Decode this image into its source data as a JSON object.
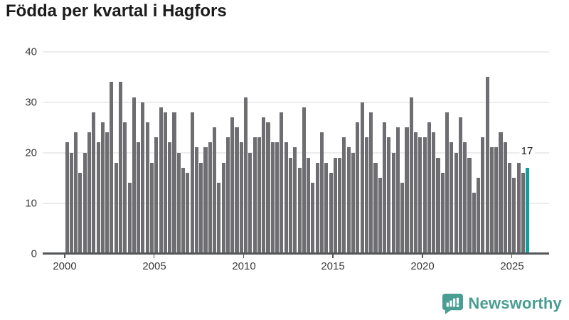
{
  "title": "Födda per kvartal i Hagfors",
  "y_axis": {
    "ticks": [
      "40",
      "30",
      "20",
      "10",
      "0"
    ],
    "values": [
      40,
      30,
      20,
      10,
      0
    ]
  },
  "x_axis": {
    "ticks": [
      "2000",
      "2005",
      "2010",
      "2015",
      "2020",
      "2025"
    ]
  },
  "annotation": {
    "label": "17"
  },
  "branding": {
    "name": "Newsworthy",
    "icon": "bar-chart-bubble-icon",
    "color": "#4a9d93"
  },
  "colors": {
    "bar": "#6d6d72",
    "highlight": "#129e9e",
    "grid": "#ececec",
    "axis": "#54565a",
    "title": "#1b1b1b",
    "labels": "#3a3a3c"
  },
  "chart_data": {
    "type": "bar",
    "title": "Födda per kvartal i Hagfors",
    "xlabel": "",
    "ylabel": "",
    "ylim": [
      0,
      40
    ],
    "grid": "horizontal",
    "x_unit": "quarter",
    "highlight": {
      "index_from_end": 1,
      "value": 17,
      "label": "17"
    },
    "years": [
      {
        "year": 2000,
        "values": [
          22,
          20,
          24,
          16
        ]
      },
      {
        "year": 2001,
        "values": [
          20,
          24,
          28,
          22
        ]
      },
      {
        "year": 2002,
        "values": [
          26,
          24,
          34,
          18
        ]
      },
      {
        "year": 2003,
        "values": [
          34,
          26,
          14,
          31
        ]
      },
      {
        "year": 2004,
        "values": [
          22,
          30,
          26,
          18
        ]
      },
      {
        "year": 2005,
        "values": [
          23,
          29,
          28,
          22
        ]
      },
      {
        "year": 2006,
        "values": [
          28,
          20,
          17,
          16
        ]
      },
      {
        "year": 2007,
        "values": [
          28,
          21,
          18,
          21
        ]
      },
      {
        "year": 2008,
        "values": [
          22,
          25,
          14,
          18
        ]
      },
      {
        "year": 2009,
        "values": [
          23,
          27,
          25,
          22
        ]
      },
      {
        "year": 2010,
        "values": [
          31,
          20,
          23,
          23
        ]
      },
      {
        "year": 2011,
        "values": [
          27,
          26,
          22,
          22
        ]
      },
      {
        "year": 2012,
        "values": [
          28,
          22,
          19,
          21
        ]
      },
      {
        "year": 2013,
        "values": [
          17,
          29,
          19,
          14
        ]
      },
      {
        "year": 2014,
        "values": [
          18,
          24,
          18,
          16
        ]
      },
      {
        "year": 2015,
        "values": [
          19,
          19,
          23,
          21
        ]
      },
      {
        "year": 2016,
        "values": [
          20,
          26,
          30,
          23
        ]
      },
      {
        "year": 2017,
        "values": [
          28,
          18,
          15,
          26
        ]
      },
      {
        "year": 2018,
        "values": [
          23,
          20,
          25,
          14
        ]
      },
      {
        "year": 2019,
        "values": [
          25,
          31,
          24,
          23
        ]
      },
      {
        "year": 2020,
        "values": [
          23,
          26,
          24,
          19
        ]
      },
      {
        "year": 2021,
        "values": [
          16,
          28,
          22,
          20
        ]
      },
      {
        "year": 2022,
        "values": [
          27,
          22,
          19,
          12
        ]
      },
      {
        "year": 2023,
        "values": [
          15,
          23,
          35,
          21
        ]
      },
      {
        "year": 2024,
        "values": [
          21,
          24,
          22,
          18
        ]
      },
      {
        "year": 2025,
        "values": [
          15,
          18,
          16,
          17
        ]
      }
    ]
  }
}
